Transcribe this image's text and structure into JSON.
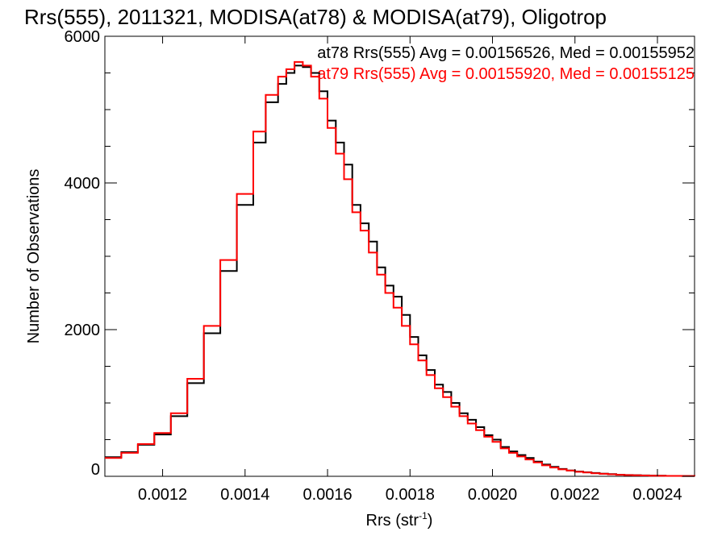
{
  "chart_data": {
    "type": "line",
    "title": "Rrs(555), 2011321, MODISA(at78) & MODISA(at79), Oligotrop",
    "xlabel": "Rrs (str",
    "xlabel_sup": "-1",
    "xlabel_close": ")",
    "ylabel": "Number of Observations",
    "xlim": [
      0.00106,
      0.00249
    ],
    "ylim": [
      0,
      6000
    ],
    "x_ticks": [
      0.0012,
      0.0014,
      0.0016,
      0.0018,
      0.002,
      0.0022,
      0.0024
    ],
    "x_tick_labels": [
      "0.0012",
      "0.0014",
      "0.0016",
      "0.0018",
      "0.0020",
      "0.0022",
      "0.0024"
    ],
    "y_ticks": [
      0,
      2000,
      4000,
      6000
    ],
    "y_tick_labels": [
      "0",
      "2000",
      "4000",
      "6000"
    ],
    "grid": false,
    "legend_placement": "top-right",
    "annotations": [
      {
        "text": "at78 Rrs(555) Avg = 0.00156526, Med = 0.00155952",
        "color": "#000000"
      },
      {
        "text": "at79 Rrs(555) Avg = 0.00155920, Med = 0.00155125",
        "color": "#ff0000"
      }
    ],
    "series": [
      {
        "color": "#000000",
        "x": [
          0.00106,
          0.0011,
          0.00114,
          0.00118,
          0.00122,
          0.00126,
          0.0013,
          0.00134,
          0.00138,
          0.00142,
          0.00145,
          0.00148,
          0.0015,
          0.00152,
          0.00154,
          0.00156,
          0.00158,
          0.0016,
          0.00162,
          0.00164,
          0.00166,
          0.00168,
          0.0017,
          0.00172,
          0.00174,
          0.00176,
          0.00178,
          0.0018,
          0.00182,
          0.00184,
          0.00186,
          0.00188,
          0.0019,
          0.00192,
          0.00194,
          0.00196,
          0.00198,
          0.002,
          0.00202,
          0.00204,
          0.00206,
          0.00208,
          0.0021,
          0.00212,
          0.00214,
          0.00216,
          0.00218,
          0.0022,
          0.00222,
          0.00224,
          0.00226,
          0.00228,
          0.0023,
          0.00232,
          0.00234,
          0.00236,
          0.00238,
          0.0024,
          0.00242,
          0.00244,
          0.00246,
          0.00249
        ],
        "y": [
          260,
          330,
          430,
          570,
          820,
          1270,
          1950,
          2800,
          3700,
          4550,
          5100,
          5350,
          5500,
          5600,
          5580,
          5500,
          5250,
          4850,
          4550,
          4250,
          3700,
          3450,
          3200,
          2850,
          2600,
          2450,
          2200,
          1900,
          1650,
          1450,
          1250,
          1150,
          1000,
          860,
          770,
          670,
          560,
          500,
          400,
          340,
          290,
          250,
          200,
          160,
          130,
          100,
          80,
          65,
          55,
          45,
          35,
          30,
          22,
          18,
          15,
          12,
          10,
          8,
          6,
          5,
          4,
          3
        ]
      },
      {
        "color": "#ff0000",
        "x": [
          0.00106,
          0.0011,
          0.00114,
          0.00118,
          0.00122,
          0.00126,
          0.0013,
          0.00134,
          0.00138,
          0.00142,
          0.00145,
          0.00148,
          0.0015,
          0.00152,
          0.00154,
          0.00156,
          0.00158,
          0.0016,
          0.00162,
          0.00164,
          0.00166,
          0.00168,
          0.0017,
          0.00172,
          0.00174,
          0.00176,
          0.00178,
          0.0018,
          0.00182,
          0.00184,
          0.00186,
          0.00188,
          0.0019,
          0.00192,
          0.00194,
          0.00196,
          0.00198,
          0.002,
          0.00202,
          0.00204,
          0.00206,
          0.00208,
          0.0021,
          0.00212,
          0.00214,
          0.00216,
          0.00218,
          0.0022,
          0.00222,
          0.00224,
          0.00226,
          0.00228,
          0.0023,
          0.00232,
          0.00234,
          0.00236,
          0.00238,
          0.0024,
          0.00242,
          0.00244,
          0.00246,
          0.00249
        ],
        "y": [
          250,
          320,
          440,
          590,
          860,
          1330,
          2050,
          2950,
          3850,
          4700,
          5200,
          5450,
          5550,
          5650,
          5600,
          5450,
          5150,
          4750,
          4400,
          4050,
          3600,
          3350,
          3050,
          2750,
          2500,
          2300,
          2050,
          1800,
          1580,
          1380,
          1200,
          1080,
          950,
          820,
          720,
          630,
          540,
          470,
          380,
          320,
          270,
          230,
          190,
          150,
          120,
          95,
          78,
          62,
          52,
          42,
          34,
          28,
          21,
          17,
          14,
          11,
          9,
          7,
          6,
          5,
          4,
          3
        ]
      }
    ]
  }
}
